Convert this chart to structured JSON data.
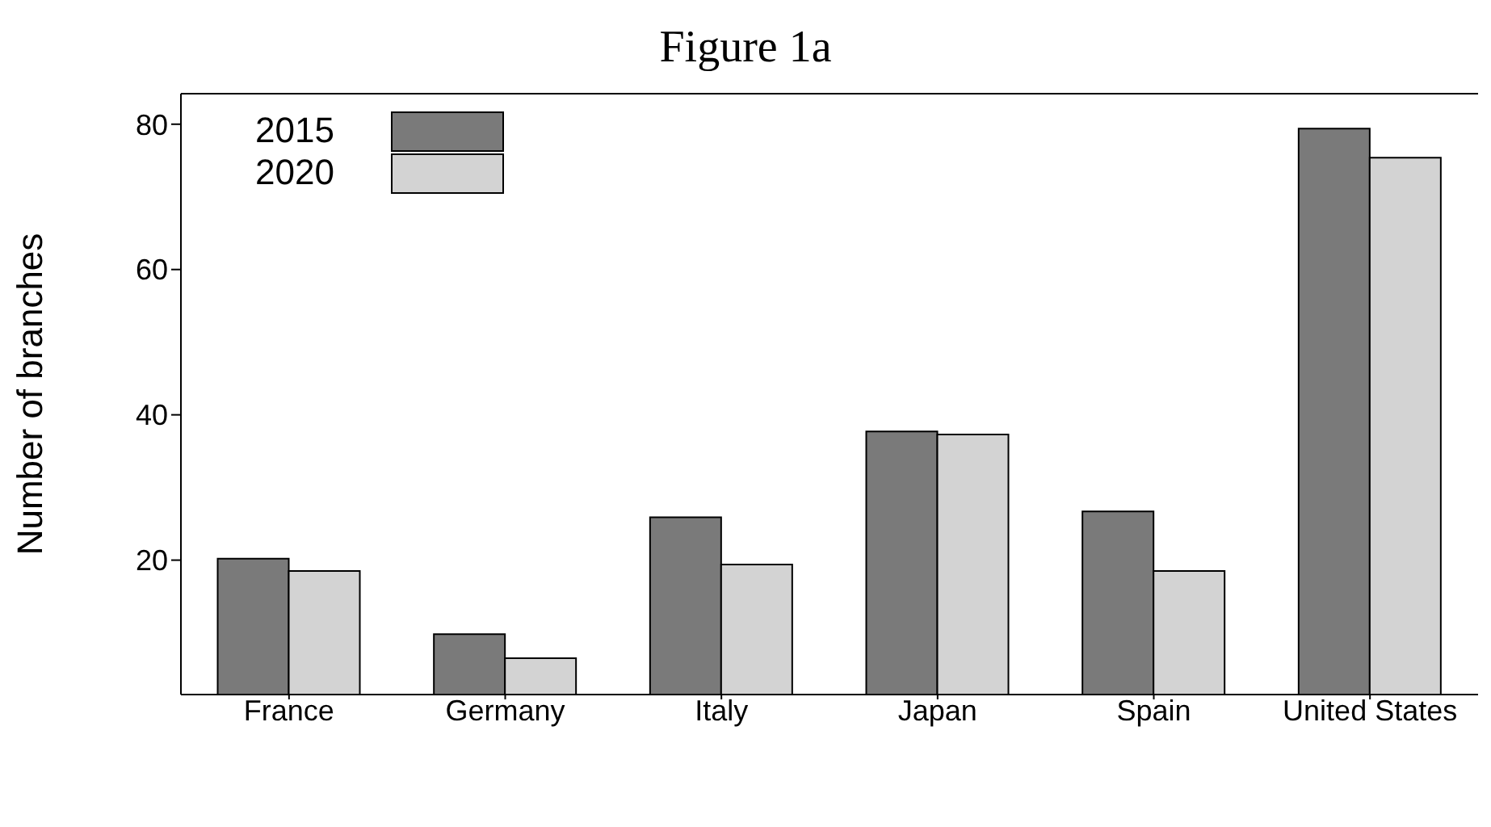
{
  "chart_data": {
    "type": "bar",
    "title": "Figure 1a",
    "ylabel": "Number of branches",
    "categories": [
      "France",
      "Germany",
      "Italy",
      "Japan",
      "Spain",
      "United States"
    ],
    "series": [
      {
        "name": "2015",
        "color": "#7a7a7a",
        "values": [
          20.2,
          9.8,
          25.9,
          37.7,
          26.7,
          79.4
        ]
      },
      {
        "name": "2020",
        "color": "#d3d3d3",
        "values": [
          18.5,
          6.5,
          19.4,
          37.3,
          18.5,
          75.4
        ]
      }
    ],
    "ylim": [
      1.5,
      84.2
    ],
    "yticks": [
      20,
      40,
      60,
      80
    ],
    "legend": "top left"
  }
}
